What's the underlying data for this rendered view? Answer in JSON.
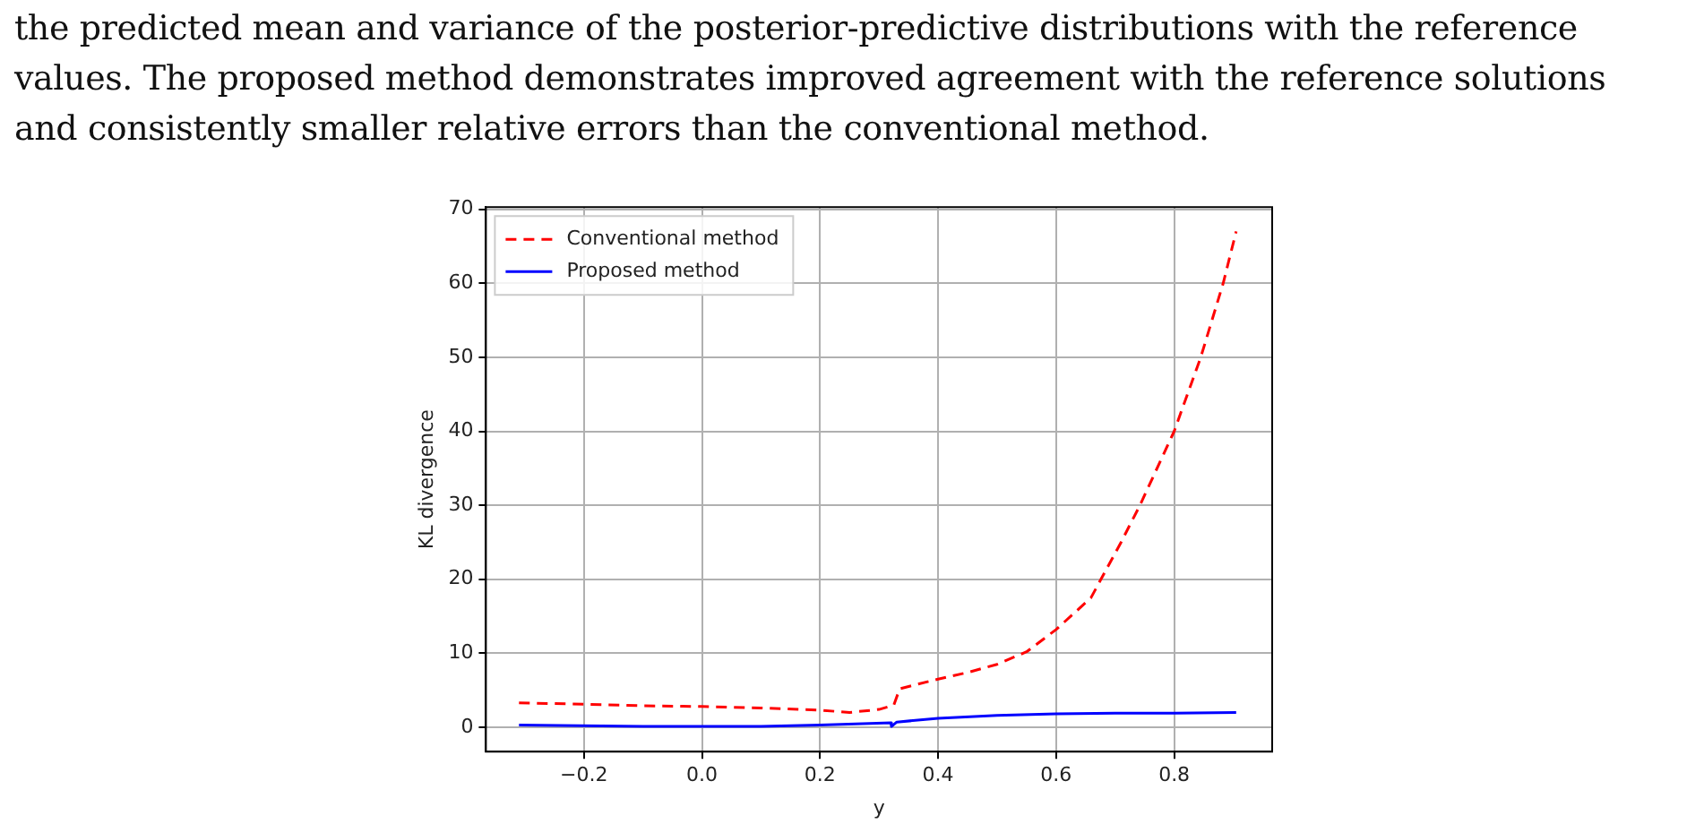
{
  "chart_data": {
    "type": "line",
    "xlabel": "y",
    "ylabel": "KL divergence",
    "annotations": [
      "the predicted mean and variance of the posterior-predictive distributions with the reference",
      "values. The proposed method demonstrates improved agreement with the reference solutions",
      "and consistently smaller relative errors than the conventional method."
    ],
    "xlim": [
      -0.366,
      0.966
    ],
    "xticks": [
      {
        "value": -0.2,
        "label": "−0.2"
      },
      {
        "value": 0,
        "label": "0.0"
      },
      {
        "value": 0.2,
        "label": "0.2"
      },
      {
        "value": 0.4,
        "label": "0.4"
      },
      {
        "value": 0.6,
        "label": "0.6"
      },
      {
        "value": 0.8,
        "label": "0.8"
      }
    ],
    "ylim": [
      -3.3,
      70.3
    ],
    "yticks": [
      0,
      10,
      20,
      30,
      40,
      50,
      60,
      70
    ],
    "grid": true,
    "legend": "top left",
    "marker": "none",
    "series": [
      {
        "name": "Conventional method",
        "color": "#ff0000",
        "line_style": "dashed",
        "x": [
          -0.31,
          -0.2,
          -0.1,
          0,
          0.1,
          0.2,
          0.25,
          0.3,
          0.325,
          0.335,
          0.4,
          0.45,
          0.5,
          0.55,
          0.6,
          0.659,
          0.71,
          0.742,
          0.8,
          0.845,
          0.883,
          0.905
        ],
        "values": [
          3.3,
          3.1,
          2.9,
          2.8,
          2.6,
          2.3,
          2.0,
          2.4,
          3.0,
          5.2,
          6.5,
          7.4,
          8.5,
          10.2,
          13.2,
          17.5,
          25,
          30,
          40,
          50,
          60,
          67
        ]
      },
      {
        "name": "Proposed method",
        "color": "#0000ff",
        "line_style": "solid",
        "x": [
          -0.31,
          -0.1,
          0,
          0.1,
          0.2,
          0.32,
          0.321,
          0.33,
          0.4,
          0.5,
          0.6,
          0.7,
          0.8,
          0.905
        ],
        "values": [
          0.3,
          0.1,
          0.1,
          0.1,
          0.3,
          0.6,
          0.1,
          0.7,
          1.2,
          1.6,
          1.8,
          1.9,
          1.9,
          2.0
        ]
      }
    ]
  }
}
